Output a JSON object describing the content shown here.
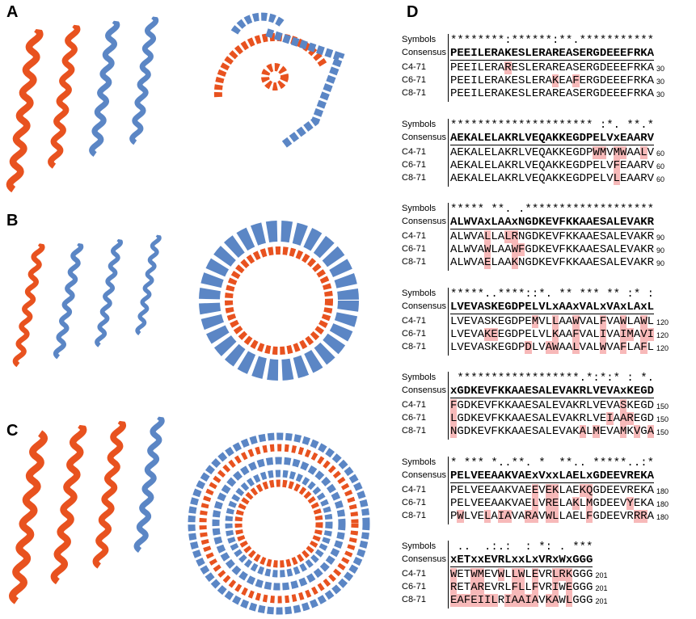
{
  "panel_labels": [
    "A",
    "B",
    "C",
    "D"
  ],
  "alignment": {
    "row_labels": [
      "Symbols",
      "Consensus",
      "C4-71",
      "C6-71",
      "C8-71"
    ],
    "blocks": [
      {
        "symbols": "********:******:**.***********",
        "consensus": "PEEILERAKESLERAREASERGDEEEFRKA",
        "sequences": [
          "PEEILERARESLERAREASERGDEEEFRKA",
          "PEEILERAKESLERAKEAFERGDEEEFRKA",
          "PEEILERAKESLERAREASERGDEEEFRKA"
        ],
        "end": 30
      },
      {
        "symbols": "********************* :*. **.*",
        "consensus": "AEKALELAKRLVEQAKKEGDPELVxEAARV",
        "sequences": [
          "AEKALELAKRLVEQAKKEGDPWMVMWAALV",
          "AEKALELAKRLVEQAKKEGDPELVFEAARV",
          "AEKALELAKRLVEQAKKEGDPELVLEAARV"
        ],
        "end": 60
      },
      {
        "symbols": "***** **. .*******************",
        "consensus": "ALWVAxLAAxNGDKEVFKKAAESALEVAKR",
        "sequences": [
          "ALWVALLALRNGDKEVFKKAAESALEVAKR",
          "ALWVAWLAAWFGDKEVFKKAAESALEVAKR",
          "ALWVAELAAKNGDKEVFKKAAESALEVAKR"
        ],
        "end": 90
      },
      {
        "symbols": "*****..****::*. ** *** ** :* :",
        "consensus": "LVEVASKEGDPELVLxAAxVALxVAxLAxL",
        "sequences": [
          "LVEVASKEGDPEMVLLAAWVALFVAWLAWL",
          "LVEVAKEEGDPELVLKAAFVALIVAIMAVI",
          "LVEVASKEGDPDLVAWAALVALWVAFLAFL"
        ],
        "end": 120
      },
      {
        "symbols": " ******************.*:*:* : *.",
        "consensus": "xGDKEVFKKAAESALEVAKRLVEVAxKEGD",
        "sequences": [
          "FGDKEVFKKAAESALEVAKRLVEVASKEGD",
          "LGDKEVFKKAAESALEVAKRLVEIAAREGD",
          "NGDKEVFKKAAESALEVAKALMEVAMKVGA"
        ],
        "end": 150
      },
      {
        "symbols": "* *** *..**. *  **.. *****..:*",
        "consensus": "PELVEEAAKVAExVxxLAELxGDEEVREKA",
        "sequences": [
          "PELVEEAAKVAEEVEKLAEKQGDEEVREKA",
          "PELVEEAAKVAELVRELAKLMGDEEVYEKA",
          "PWLVELAIAVARAVWLLAELFGDEEVRRRA"
        ],
        "end": 180
      },
      {
        "symbols": " ..  .:.:  : *: . ***",
        "consensus": "xETxxEVRLxxLxVRxWxGGG",
        "sequences": [
          "WETWMEVWLLWLEVRLRKGGG",
          "RETAREVRLFLLFVRIWEGGG",
          "EAFEIILRIAAIAVKAWLGGG"
        ],
        "end": 201
      }
    ]
  }
}
